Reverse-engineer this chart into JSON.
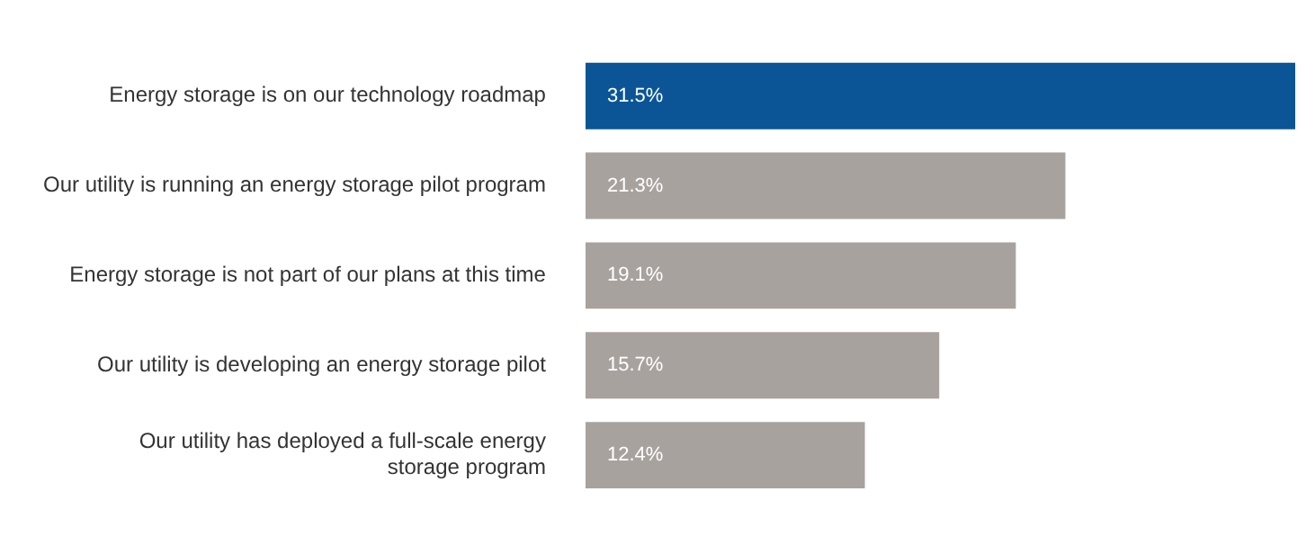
{
  "chart_data": {
    "type": "bar",
    "orientation": "horizontal",
    "categories": [
      "Energy storage is on our technology roadmap",
      "Our utility is running an energy storage pilot program",
      "Energy storage is not part of our plans at this time",
      "Our utility is developing an energy storage pilot",
      "Our utility has deployed a full-scale energy storage program"
    ],
    "values": [
      31.5,
      21.3,
      19.1,
      15.7,
      12.4
    ],
    "colors": [
      "#0b5597",
      "#a8a29e",
      "#a8a29e",
      "#a8a29e",
      "#a8a29e"
    ],
    "value_labels": [
      "31.5%",
      "21.3%",
      "19.1%",
      "15.7%",
      "12.4%"
    ]
  }
}
